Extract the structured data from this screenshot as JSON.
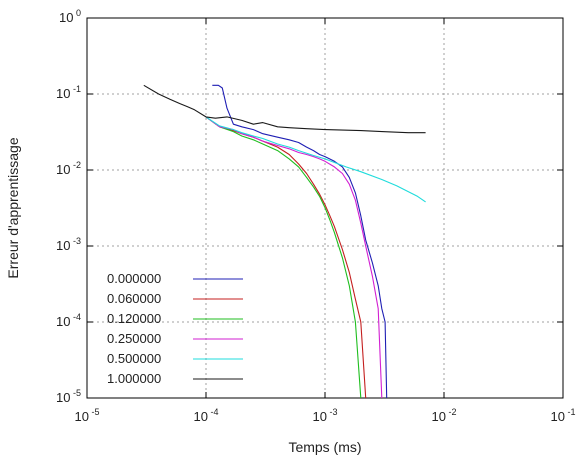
{
  "chart_data": {
    "type": "line",
    "title": "",
    "xlabel": "Temps (ms)",
    "ylabel": "Erreur d'apprentissage",
    "xscale": "log",
    "yscale": "log",
    "xlim": [
      1e-05,
      0.1
    ],
    "ylim": [
      1e-05,
      1
    ],
    "grid": true,
    "legend_position": "bottom-left",
    "x_ticks": [
      {
        "base": "10",
        "exp": "-5"
      },
      {
        "base": "10",
        "exp": "-4"
      },
      {
        "base": "10",
        "exp": "-3"
      },
      {
        "base": "10",
        "exp": "-2"
      },
      {
        "base": "10",
        "exp": "-1"
      }
    ],
    "y_ticks": [
      {
        "base": "10",
        "exp": "0"
      },
      {
        "base": "10",
        "exp": "-1"
      },
      {
        "base": "10",
        "exp": "-2"
      },
      {
        "base": "10",
        "exp": "-3"
      },
      {
        "base": "10",
        "exp": "-4"
      },
      {
        "base": "10",
        "exp": "-5"
      }
    ],
    "series": [
      {
        "name": "0.000000",
        "color": "#1f1fb4",
        "x": [
          0.000113,
          0.000127,
          0.000137,
          0.00015,
          0.00017,
          0.0002,
          0.00025,
          0.0003,
          0.0004,
          0.0005,
          0.0006,
          0.0007,
          0.0008,
          0.0009,
          0.001,
          0.0012,
          0.0014,
          0.0016,
          0.0018,
          0.002,
          0.0022,
          0.0025,
          0.0028,
          0.003,
          0.0032,
          0.0033
        ],
        "y": [
          0.13,
          0.13,
          0.12,
          0.065,
          0.04,
          0.037,
          0.034,
          0.03,
          0.027,
          0.025,
          0.023,
          0.02,
          0.018,
          0.016,
          0.015,
          0.013,
          0.011,
          0.008,
          0.005,
          0.0025,
          0.0012,
          0.0006,
          0.0003,
          0.00015,
          0.0001,
          1e-05
        ]
      },
      {
        "name": "0.060000",
        "color": "#c41f1f",
        "x": [
          0.0001,
          0.00013,
          0.00017,
          0.0002,
          0.00025,
          0.0003,
          0.0004,
          0.0005,
          0.0006,
          0.0007,
          0.0008,
          0.0009,
          0.001,
          0.0011,
          0.0012,
          0.0014,
          0.0016,
          0.0018,
          0.002,
          0.0022
        ],
        "y": [
          0.05,
          0.037,
          0.033,
          0.03,
          0.027,
          0.024,
          0.02,
          0.016,
          0.012,
          0.009,
          0.0065,
          0.0048,
          0.0035,
          0.0025,
          0.0018,
          0.0009,
          0.00045,
          0.0002,
          0.0001,
          1e-05
        ]
      },
      {
        "name": "0.120000",
        "color": "#1fbe1f",
        "x": [
          0.0001,
          0.00013,
          0.00017,
          0.0002,
          0.00025,
          0.0003,
          0.0004,
          0.0005,
          0.0006,
          0.0007,
          0.0008,
          0.0009,
          0.001,
          0.0011,
          0.0012,
          0.0014,
          0.0016,
          0.0018,
          0.002
        ],
        "y": [
          0.05,
          0.037,
          0.032,
          0.028,
          0.025,
          0.022,
          0.018,
          0.014,
          0.011,
          0.008,
          0.006,
          0.0045,
          0.0032,
          0.0022,
          0.0015,
          0.0007,
          0.0003,
          0.0001,
          1e-05
        ]
      },
      {
        "name": "0.250000",
        "color": "#d21fd2",
        "x": [
          0.0001,
          0.00013,
          0.00017,
          0.0002,
          0.00025,
          0.0003,
          0.0004,
          0.0005,
          0.0006,
          0.0007,
          0.0008,
          0.0009,
          0.001,
          0.0012,
          0.0014,
          0.0016,
          0.0018,
          0.002,
          0.0022,
          0.0025,
          0.0028,
          0.003
        ],
        "y": [
          0.05,
          0.037,
          0.034,
          0.03,
          0.027,
          0.024,
          0.021,
          0.019,
          0.017,
          0.016,
          0.015,
          0.014,
          0.013,
          0.011,
          0.009,
          0.0065,
          0.004,
          0.002,
          0.001,
          0.0004,
          0.00015,
          1e-05
        ]
      },
      {
        "name": "0.500000",
        "color": "#1fdcdc",
        "x": [
          0.0001,
          0.00013,
          0.00017,
          0.0002,
          0.00025,
          0.0003,
          0.0004,
          0.0005,
          0.0006,
          0.0008,
          0.001,
          0.0015,
          0.002,
          0.003,
          0.004,
          0.005,
          0.006,
          0.007
        ],
        "y": [
          0.05,
          0.038,
          0.034,
          0.031,
          0.028,
          0.026,
          0.022,
          0.02,
          0.018,
          0.0155,
          0.014,
          0.011,
          0.0095,
          0.0075,
          0.0062,
          0.0052,
          0.0045,
          0.0038
        ]
      },
      {
        "name": "1.000000",
        "color": "#1a1a1a",
        "x": [
          3e-05,
          4e-05,
          5e-05,
          6e-05,
          7e-05,
          8e-05,
          0.0001,
          0.00012,
          0.00015,
          0.0002,
          0.00025,
          0.0003,
          0.0004,
          0.0005,
          0.0007,
          0.001,
          0.002,
          0.003,
          0.005,
          0.007
        ],
        "y": [
          0.13,
          0.1,
          0.085,
          0.075,
          0.068,
          0.062,
          0.05,
          0.048,
          0.05,
          0.045,
          0.04,
          0.042,
          0.037,
          0.036,
          0.035,
          0.034,
          0.033,
          0.032,
          0.031,
          0.031
        ]
      }
    ]
  }
}
